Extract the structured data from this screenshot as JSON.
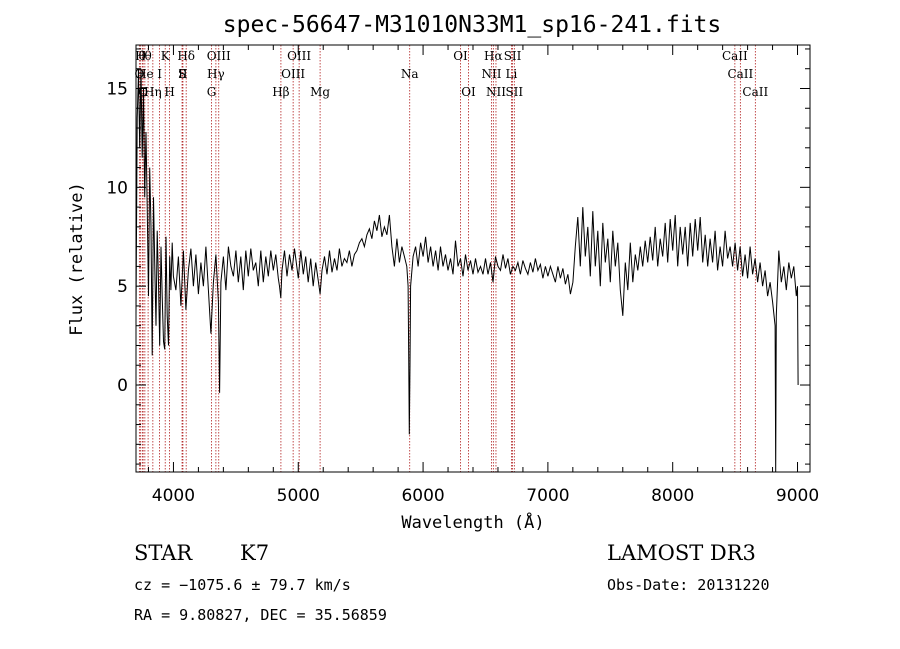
{
  "chart_data": {
    "type": "line",
    "title": "spec-56647-M31010N33M1_sp16-241.fits",
    "xlabel": "Wavelength (Å)",
    "ylabel": "Flux (relative)",
    "xlim": [
      3700,
      9100
    ],
    "ylim": [
      -4.4,
      17.2
    ],
    "x_ticks": [
      4000,
      5000,
      6000,
      7000,
      8000,
      9000
    ],
    "y_ticks": [
      0,
      5,
      10,
      15
    ],
    "line_color": "#000000",
    "marker_color": "#b22222",
    "spectrum": [
      [
        3700,
        3.5
      ],
      [
        3710,
        13.5
      ],
      [
        3720,
        15.8
      ],
      [
        3730,
        12.0
      ],
      [
        3740,
        16.0
      ],
      [
        3750,
        11.5
      ],
      [
        3760,
        15.0
      ],
      [
        3770,
        9.5
      ],
      [
        3780,
        12.8
      ],
      [
        3790,
        9.0
      ],
      [
        3800,
        4.5
      ],
      [
        3810,
        11.0
      ],
      [
        3820,
        8.0
      ],
      [
        3830,
        1.5
      ],
      [
        3840,
        9.5
      ],
      [
        3850,
        6.2
      ],
      [
        3860,
        3.0
      ],
      [
        3870,
        7.8
      ],
      [
        3880,
        5.2
      ],
      [
        3890,
        2.0
      ],
      [
        3900,
        7.0
      ],
      [
        3910,
        4.5
      ],
      [
        3920,
        2.2
      ],
      [
        3930,
        1.8
      ],
      [
        3940,
        7.5
      ],
      [
        3950,
        3.5
      ],
      [
        3960,
        2.0
      ],
      [
        3970,
        6.5
      ],
      [
        3980,
        4.8
      ],
      [
        3990,
        7.2
      ],
      [
        4000,
        5.5
      ],
      [
        4020,
        4.8
      ],
      [
        4040,
        6.5
      ],
      [
        4060,
        4.0
      ],
      [
        4080,
        6.8
      ],
      [
        4100,
        3.8
      ],
      [
        4120,
        5.8
      ],
      [
        4140,
        6.9
      ],
      [
        4160,
        5.0
      ],
      [
        4180,
        6.6
      ],
      [
        4200,
        4.6
      ],
      [
        4220,
        6.2
      ],
      [
        4240,
        5.0
      ],
      [
        4260,
        7.0
      ],
      [
        4280,
        4.8
      ],
      [
        4300,
        2.6
      ],
      [
        4320,
        5.2
      ],
      [
        4340,
        6.6
      ],
      [
        4360,
        4.2
      ],
      [
        4370,
        -0.4
      ],
      [
        4380,
        5.2
      ],
      [
        4400,
        6.5
      ],
      [
        4420,
        4.8
      ],
      [
        4440,
        7.0
      ],
      [
        4460,
        6.0
      ],
      [
        4480,
        5.5
      ],
      [
        4500,
        6.8
      ],
      [
        4520,
        5.2
      ],
      [
        4540,
        6.5
      ],
      [
        4560,
        4.8
      ],
      [
        4580,
        6.8
      ],
      [
        4600,
        5.5
      ],
      [
        4620,
        6.9
      ],
      [
        4640,
        5.8
      ],
      [
        4660,
        6.2
      ],
      [
        4680,
        5.0
      ],
      [
        4700,
        6.8
      ],
      [
        4720,
        5.2
      ],
      [
        4740,
        6.5
      ],
      [
        4760,
        5.5
      ],
      [
        4780,
        6.8
      ],
      [
        4800,
        5.8
      ],
      [
        4820,
        6.6
      ],
      [
        4840,
        5.4
      ],
      [
        4850,
        5.0
      ],
      [
        4860,
        4.4
      ],
      [
        4870,
        5.8
      ],
      [
        4890,
        6.8
      ],
      [
        4910,
        5.5
      ],
      [
        4930,
        6.6
      ],
      [
        4950,
        5.8
      ],
      [
        4970,
        6.9
      ],
      [
        5000,
        5.4
      ],
      [
        5020,
        6.8
      ],
      [
        5040,
        5.6
      ],
      [
        5060,
        6.5
      ],
      [
        5080,
        5.2
      ],
      [
        5100,
        6.4
      ],
      [
        5120,
        5.0
      ],
      [
        5140,
        6.2
      ],
      [
        5160,
        5.3
      ],
      [
        5175,
        4.6
      ],
      [
        5190,
        5.8
      ],
      [
        5210,
        6.5
      ],
      [
        5230,
        5.6
      ],
      [
        5250,
        6.8
      ],
      [
        5270,
        5.7
      ],
      [
        5290,
        6.4
      ],
      [
        5310,
        5.8
      ],
      [
        5330,
        6.9
      ],
      [
        5350,
        6.0
      ],
      [
        5370,
        6.4
      ],
      [
        5390,
        6.2
      ],
      [
        5410,
        6.8
      ],
      [
        5430,
        6.0
      ],
      [
        5450,
        6.6
      ],
      [
        5470,
        6.8
      ],
      [
        5490,
        7.2
      ],
      [
        5510,
        7.4
      ],
      [
        5530,
        7.0
      ],
      [
        5550,
        7.6
      ],
      [
        5570,
        7.9
      ],
      [
        5590,
        7.4
      ],
      [
        5610,
        8.3
      ],
      [
        5630,
        7.8
      ],
      [
        5650,
        8.6
      ],
      [
        5670,
        7.5
      ],
      [
        5690,
        8.0
      ],
      [
        5710,
        7.6
      ],
      [
        5730,
        8.6
      ],
      [
        5750,
        7.0
      ],
      [
        5770,
        6.0
      ],
      [
        5790,
        7.4
      ],
      [
        5810,
        6.2
      ],
      [
        5830,
        7.0
      ],
      [
        5850,
        6.5
      ],
      [
        5870,
        6.0
      ],
      [
        5880,
        5.0
      ],
      [
        5885,
        1.5
      ],
      [
        5890,
        -2.5
      ],
      [
        5895,
        1.0
      ],
      [
        5900,
        5.0
      ],
      [
        5920,
        6.5
      ],
      [
        5940,
        7.0
      ],
      [
        5960,
        6.0
      ],
      [
        5980,
        7.2
      ],
      [
        6000,
        6.5
      ],
      [
        6020,
        7.5
      ],
      [
        6040,
        6.2
      ],
      [
        6060,
        7.0
      ],
      [
        6080,
        6.0
      ],
      [
        6100,
        6.8
      ],
      [
        6120,
        5.8
      ],
      [
        6140,
        7.0
      ],
      [
        6160,
        6.0
      ],
      [
        6180,
        6.6
      ],
      [
        6200,
        5.8
      ],
      [
        6220,
        6.4
      ],
      [
        6240,
        5.6
      ],
      [
        6260,
        7.3
      ],
      [
        6280,
        6.0
      ],
      [
        6300,
        6.4
      ],
      [
        6320,
        5.5
      ],
      [
        6340,
        6.6
      ],
      [
        6360,
        5.8
      ],
      [
        6380,
        6.3
      ],
      [
        6400,
        5.6
      ],
      [
        6420,
        6.4
      ],
      [
        6440,
        5.7
      ],
      [
        6460,
        6.0
      ],
      [
        6480,
        5.6
      ],
      [
        6500,
        6.4
      ],
      [
        6520,
        5.6
      ],
      [
        6540,
        6.2
      ],
      [
        6560,
        5.2
      ],
      [
        6580,
        6.5
      ],
      [
        6600,
        6.0
      ],
      [
        6620,
        5.8
      ],
      [
        6640,
        6.6
      ],
      [
        6660,
        5.9
      ],
      [
        6680,
        6.4
      ],
      [
        6700,
        5.6
      ],
      [
        6720,
        6.0
      ],
      [
        6740,
        5.8
      ],
      [
        6760,
        6.2
      ],
      [
        6780,
        5.6
      ],
      [
        6800,
        6.3
      ],
      [
        6820,
        5.9
      ],
      [
        6840,
        5.6
      ],
      [
        6860,
        6.2
      ],
      [
        6880,
        5.7
      ],
      [
        6900,
        6.4
      ],
      [
        6920,
        5.8
      ],
      [
        6940,
        6.1
      ],
      [
        6960,
        5.4
      ],
      [
        6980,
        6.0
      ],
      [
        7000,
        5.5
      ],
      [
        7020,
        6.0
      ],
      [
        7040,
        5.6
      ],
      [
        7060,
        5.2
      ],
      [
        7080,
        6.0
      ],
      [
        7100,
        5.4
      ],
      [
        7120,
        5.9
      ],
      [
        7140,
        5.1
      ],
      [
        7160,
        5.6
      ],
      [
        7180,
        4.6
      ],
      [
        7200,
        5.2
      ],
      [
        7220,
        7.0
      ],
      [
        7240,
        8.5
      ],
      [
        7260,
        6.0
      ],
      [
        7280,
        9.0
      ],
      [
        7300,
        6.5
      ],
      [
        7320,
        8.0
      ],
      [
        7340,
        5.5
      ],
      [
        7360,
        8.8
      ],
      [
        7380,
        6.0
      ],
      [
        7400,
        7.8
      ],
      [
        7420,
        5.0
      ],
      [
        7440,
        8.2
      ],
      [
        7460,
        6.2
      ],
      [
        7480,
        7.4
      ],
      [
        7500,
        5.2
      ],
      [
        7520,
        7.8
      ],
      [
        7540,
        6.0
      ],
      [
        7560,
        7.2
      ],
      [
        7580,
        4.8
      ],
      [
        7600,
        3.5
      ],
      [
        7620,
        6.2
      ],
      [
        7640,
        4.8
      ],
      [
        7660,
        7.2
      ],
      [
        7680,
        5.2
      ],
      [
        7700,
        6.6
      ],
      [
        7720,
        5.8
      ],
      [
        7740,
        7.0
      ],
      [
        7760,
        6.0
      ],
      [
        7780,
        7.3
      ],
      [
        7800,
        6.2
      ],
      [
        7820,
        7.5
      ],
      [
        7840,
        6.3
      ],
      [
        7860,
        8.0
      ],
      [
        7880,
        6.0
      ],
      [
        7900,
        7.4
      ],
      [
        7920,
        6.5
      ],
      [
        7940,
        8.2
      ],
      [
        7960,
        6.2
      ],
      [
        7980,
        8.4
      ],
      [
        8000,
        6.8
      ],
      [
        8020,
        8.6
      ],
      [
        8040,
        6.0
      ],
      [
        8060,
        8.0
      ],
      [
        8080,
        6.6
      ],
      [
        8100,
        8.0
      ],
      [
        8120,
        6.0
      ],
      [
        8140,
        8.2
      ],
      [
        8160,
        6.5
      ],
      [
        8180,
        8.4
      ],
      [
        8200,
        6.8
      ],
      [
        8220,
        8.5
      ],
      [
        8240,
        6.2
      ],
      [
        8260,
        7.6
      ],
      [
        8280,
        6.0
      ],
      [
        8300,
        7.4
      ],
      [
        8320,
        6.2
      ],
      [
        8340,
        7.8
      ],
      [
        8360,
        5.8
      ],
      [
        8380,
        7.0
      ],
      [
        8400,
        6.0
      ],
      [
        8420,
        7.8
      ],
      [
        8440,
        6.4
      ],
      [
        8460,
        7.0
      ],
      [
        8480,
        6.0
      ],
      [
        8500,
        7.2
      ],
      [
        8520,
        5.8
      ],
      [
        8540,
        7.0
      ],
      [
        8560,
        5.5
      ],
      [
        8580,
        6.6
      ],
      [
        8600,
        5.4
      ],
      [
        8620,
        7.0
      ],
      [
        8640,
        5.6
      ],
      [
        8660,
        6.4
      ],
      [
        8680,
        5.2
      ],
      [
        8700,
        6.2
      ],
      [
        8720,
        5.0
      ],
      [
        8740,
        5.8
      ],
      [
        8760,
        4.5
      ],
      [
        8780,
        5.2
      ],
      [
        8800,
        4.2
      ],
      [
        8820,
        3.0
      ],
      [
        8825,
        -4.4
      ],
      [
        8830,
        3.5
      ],
      [
        8850,
        6.8
      ],
      [
        8870,
        5.2
      ],
      [
        8890,
        6.0
      ],
      [
        8910,
        4.8
      ],
      [
        8930,
        6.2
      ],
      [
        8950,
        5.4
      ],
      [
        8970,
        6.0
      ],
      [
        8990,
        4.5
      ],
      [
        9000,
        5.0
      ],
      [
        9005,
        0.0
      ]
    ],
    "lines": [
      {
        "label": "O",
        "x": 3727,
        "row": 2
      },
      {
        "label": "H",
        "x": 3735,
        "row": 1
      },
      {
        "label": "θ",
        "x": 3750,
        "row": 1
      },
      {
        "label": "He",
        "x": 3771,
        "row": 2
      },
      {
        "label": "O",
        "x": 3757,
        "row": 3
      },
      {
        "label": "Hη",
        "x": 3835,
        "row": 3
      },
      {
        "label": "θ",
        "x": 3797,
        "row": 1
      },
      {
        "label": "K",
        "x": 3934,
        "row": 1
      },
      {
        "label": "H",
        "x": 3969,
        "row": 3
      },
      {
        "label": "I",
        "x": 3889,
        "row": 2
      },
      {
        "label": "S",
        "x": 4069,
        "row": 2
      },
      {
        "label": "II",
        "x": 4076,
        "row": 2
      },
      {
        "label": "Hδ",
        "x": 4102,
        "row": 1
      },
      {
        "label": "OIII",
        "x": 4363,
        "row": 1
      },
      {
        "label": "Hγ",
        "x": 4340,
        "row": 2
      },
      {
        "label": "G",
        "x": 4305,
        "row": 3
      },
      {
        "label": "Hβ",
        "x": 4861,
        "row": 3
      },
      {
        "label": "OIII",
        "x": 5007,
        "row": 1
      },
      {
        "label": "OIII",
        "x": 4959,
        "row": 2
      },
      {
        "label": "Mg",
        "x": 5175,
        "row": 3
      },
      {
        "label": "Na",
        "x": 5893,
        "row": 2
      },
      {
        "label": "OI",
        "x": 6300,
        "row": 1
      },
      {
        "label": "OI",
        "x": 6364,
        "row": 3
      },
      {
        "label": "Hα",
        "x": 6563,
        "row": 1
      },
      {
        "label": "NII",
        "x": 6548,
        "row": 2
      },
      {
        "label": "NII",
        "x": 6584,
        "row": 3
      },
      {
        "label": "SII",
        "x": 6717,
        "row": 1
      },
      {
        "label": "Li",
        "x": 6708,
        "row": 2
      },
      {
        "label": "SII",
        "x": 6731,
        "row": 3
      },
      {
        "label": "CaII",
        "x": 8498,
        "row": 1
      },
      {
        "label": "CaII",
        "x": 8542,
        "row": 2
      },
      {
        "label": "CaII",
        "x": 8662,
        "row": 3
      }
    ]
  },
  "info": {
    "class": "STAR",
    "subclass": "K7",
    "survey": "LAMOST DR3",
    "cz": "cz = −1075.6 ± 79.7 km/s",
    "obs_date": "Obs-Date: 20131220",
    "coords": "RA =   9.80827, DEC =  35.56859"
  }
}
